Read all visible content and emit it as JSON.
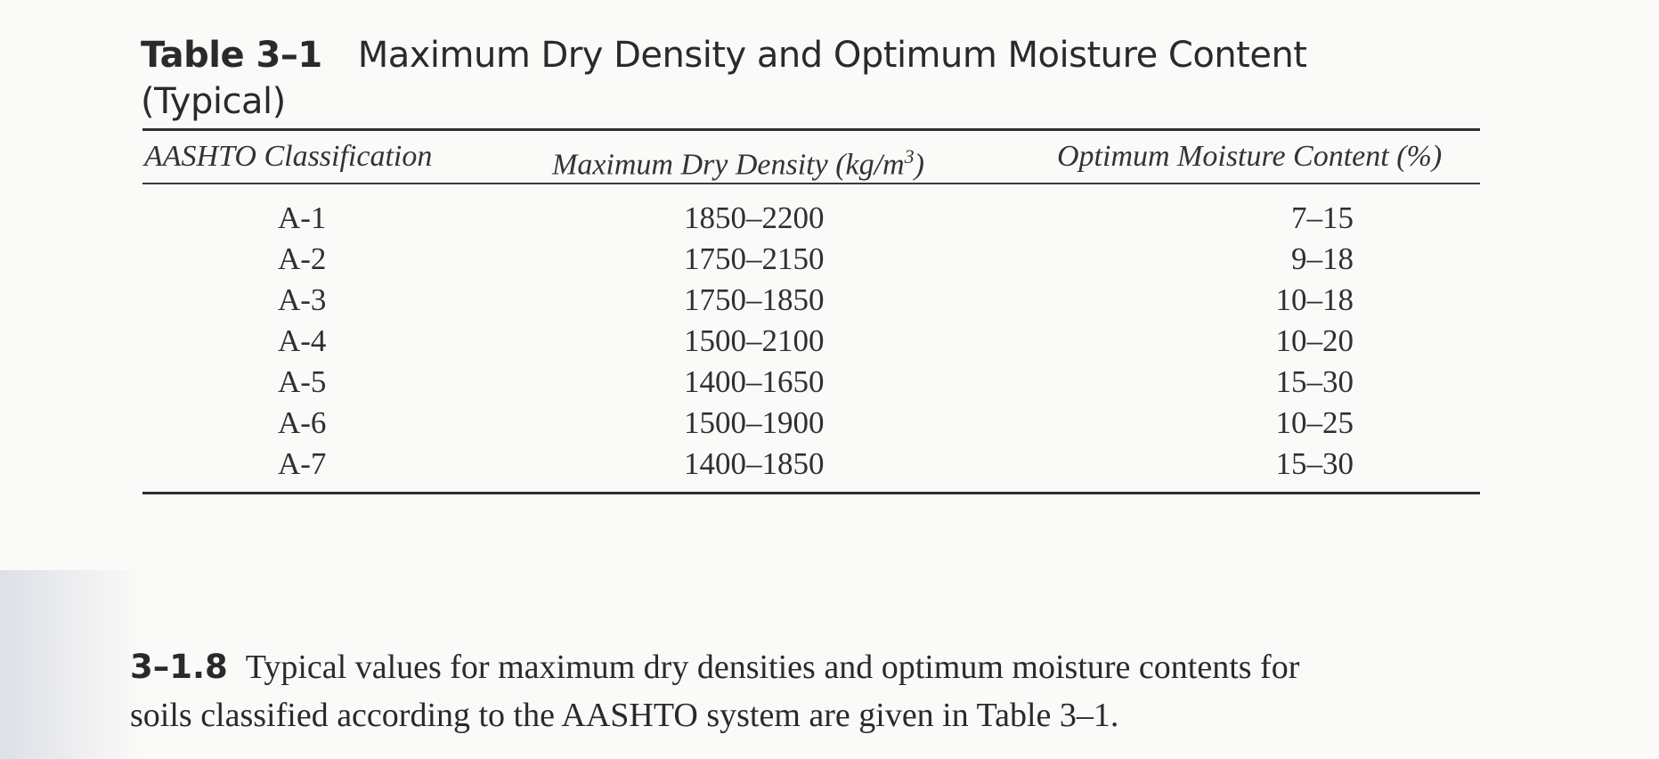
{
  "table": {
    "number": "Table 3–1",
    "title": "Maximum Dry Density and Optimum Moisture Content",
    "title_line2": "(Typical)",
    "columns": {
      "col1": "AASHTO Classification",
      "col2_prefix": "Maximum Dry Density (kg/m",
      "col2_sup": "3",
      "col2_suffix": ")",
      "col3": "Optimum Moisture Content (%)"
    },
    "rows": [
      {
        "classification": "A-1",
        "density": "1850–2200",
        "moisture": "7–15"
      },
      {
        "classification": "A-2",
        "density": "1750–2150",
        "moisture": "9–18"
      },
      {
        "classification": "A-3",
        "density": "1750–1850",
        "moisture": "10–18"
      },
      {
        "classification": "A-4",
        "density": "1500–2100",
        "moisture": "10–20"
      },
      {
        "classification": "A-5",
        "density": "1400–1650",
        "moisture": "15–30"
      },
      {
        "classification": "A-6",
        "density": "1500–1900",
        "moisture": "10–25"
      },
      {
        "classification": "A-7",
        "density": "1400–1850",
        "moisture": "15–30"
      }
    ]
  },
  "section": {
    "number": "3–1.8",
    "text_line1": "Typical values for maximum dry densities and optimum moisture contents for",
    "text_line2": "soils classified according to the AASHTO system are given in Table 3–1."
  }
}
